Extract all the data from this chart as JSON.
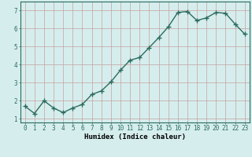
{
  "x": [
    0,
    1,
    2,
    3,
    4,
    5,
    6,
    7,
    8,
    9,
    10,
    11,
    12,
    13,
    14,
    15,
    16,
    17,
    18,
    19,
    20,
    21,
    22,
    23
  ],
  "y": [
    1.7,
    1.3,
    2.0,
    1.6,
    1.35,
    1.6,
    1.8,
    2.35,
    2.55,
    3.05,
    3.7,
    4.25,
    4.4,
    4.95,
    5.5,
    6.1,
    6.9,
    6.95,
    6.45,
    6.6,
    6.9,
    6.85,
    6.25,
    5.7
  ],
  "line_color": "#2d6b5e",
  "marker": "+",
  "markersize": 4,
  "linewidth": 1.0,
  "xlabel": "Humidex (Indice chaleur)",
  "xlim": [
    -0.5,
    23.5
  ],
  "ylim": [
    0.8,
    7.5
  ],
  "yticks": [
    1,
    2,
    3,
    4,
    5,
    6,
    7
  ],
  "xticks": [
    0,
    1,
    2,
    3,
    4,
    5,
    6,
    7,
    8,
    9,
    10,
    11,
    12,
    13,
    14,
    15,
    16,
    17,
    18,
    19,
    20,
    21,
    22,
    23
  ],
  "bg_color": "#d5eeed",
  "grid_color": "#c8dede",
  "tick_label_fontsize": 5.5,
  "xlabel_fontsize": 6.5,
  "xlabel_fontweight": "bold"
}
